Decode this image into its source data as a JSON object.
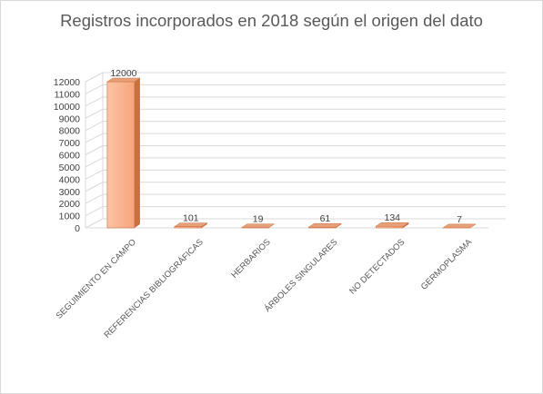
{
  "chart_data": {
    "type": "bar",
    "title": "Registros incorporados en 2018 según el origen del dato",
    "categories": [
      "SEGUIMIENTO EN CAMPO",
      "REFERENCIAS BIBLIOGRÁFICAS",
      "HERBARIOS",
      "ÁRBOLES SINGULARES",
      "NO DETECTADOS",
      "GERMOPLASMA"
    ],
    "values": [
      12000,
      101,
      19,
      61,
      134,
      7
    ],
    "data_labels": [
      "12000",
      "101",
      "19",
      "61",
      "134",
      "7"
    ],
    "ylim": [
      0,
      12000
    ],
    "yticks": [
      0,
      1000,
      2000,
      3000,
      4000,
      5000,
      6000,
      7000,
      8000,
      9000,
      10000,
      11000,
      12000
    ],
    "ytick_labels": [
      "0",
      "1000",
      "2000",
      "3000",
      "4000",
      "5000",
      "6000",
      "7000",
      "8000",
      "9000",
      "10000",
      "11000",
      "12000"
    ],
    "grid": true,
    "legend": "none",
    "bar_color_front": "#fbb08c",
    "bar_color_top": "#e8a07a",
    "bar_color_side": "#c8703e"
  }
}
